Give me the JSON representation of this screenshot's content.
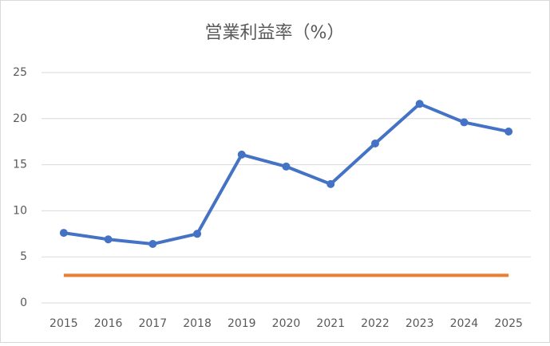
{
  "chart_data": {
    "type": "line",
    "title": "営業利益率（%）",
    "categories": [
      "2015",
      "2016",
      "2017",
      "2018",
      "2019",
      "2020",
      "2021",
      "2022",
      "2023",
      "2024",
      "2025"
    ],
    "series": [
      {
        "color": "#4472c4",
        "marker": true,
        "values": [
          7.6,
          6.9,
          6.4,
          7.5,
          16.1,
          14.8,
          12.9,
          17.3,
          21.6,
          19.6,
          18.6
        ]
      },
      {
        "color": "#ed7d31",
        "marker": false,
        "values": [
          3,
          3,
          3,
          3,
          3,
          3,
          3,
          3,
          3,
          3,
          3
        ]
      }
    ],
    "ylim": [
      0,
      25
    ],
    "yticks": [
      0,
      5,
      10,
      15,
      20,
      25
    ],
    "grid": true
  }
}
